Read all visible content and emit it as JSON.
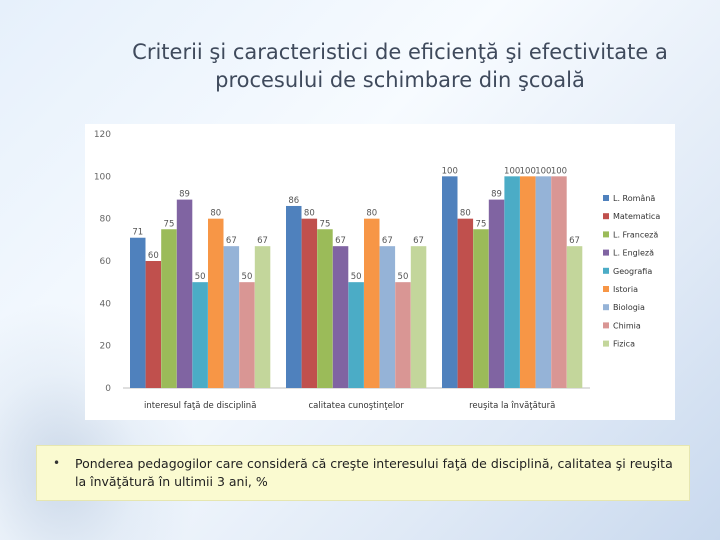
{
  "slide": {
    "title": "Criterii şi caracteristici de eficienţă şi efectivitate a procesului de schimbare din şcoală",
    "note_bullet": "•",
    "note": "Ponderea pedagogilor care consideră că creşte interesului faţă de disciplină, calitatea şi reuşita la învăţătură în ultimii 3 ani, %"
  },
  "chart_data": {
    "type": "bar",
    "categories": [
      "interesul faţă de disciplină",
      "calitatea cunoştinţelor",
      "reuşita la învăţătură"
    ],
    "series": [
      {
        "name": "L. Română",
        "values": [
          71,
          86,
          100
        ],
        "color": "#4f81bd"
      },
      {
        "name": "Matematica",
        "values": [
          60,
          80,
          80
        ],
        "color": "#c0504d"
      },
      {
        "name": "L. Franceză",
        "values": [
          75,
          75,
          75
        ],
        "color": "#9bbb59"
      },
      {
        "name": "L. Engleză",
        "values": [
          89,
          67,
          89
        ],
        "color": "#8064a2"
      },
      {
        "name": "Geografia",
        "values": [
          50,
          50,
          100
        ],
        "color": "#4bacc6"
      },
      {
        "name": "Istoria",
        "values": [
          80,
          80,
          100
        ],
        "color": "#f79646"
      },
      {
        "name": "Biologia",
        "values": [
          67,
          67,
          100
        ],
        "color": "#95b3d7"
      },
      {
        "name": "Chimia",
        "values": [
          50,
          50,
          100
        ],
        "color": "#d99694"
      },
      {
        "name": "Fizica",
        "values": [
          67,
          67,
          67
        ],
        "color": "#c3d69b"
      }
    ],
    "ylim": [
      0,
      120
    ],
    "yticks": [
      "0",
      "20",
      "40",
      "60",
      "80",
      "100",
      "120"
    ],
    "legend": "right",
    "grid": false
  }
}
